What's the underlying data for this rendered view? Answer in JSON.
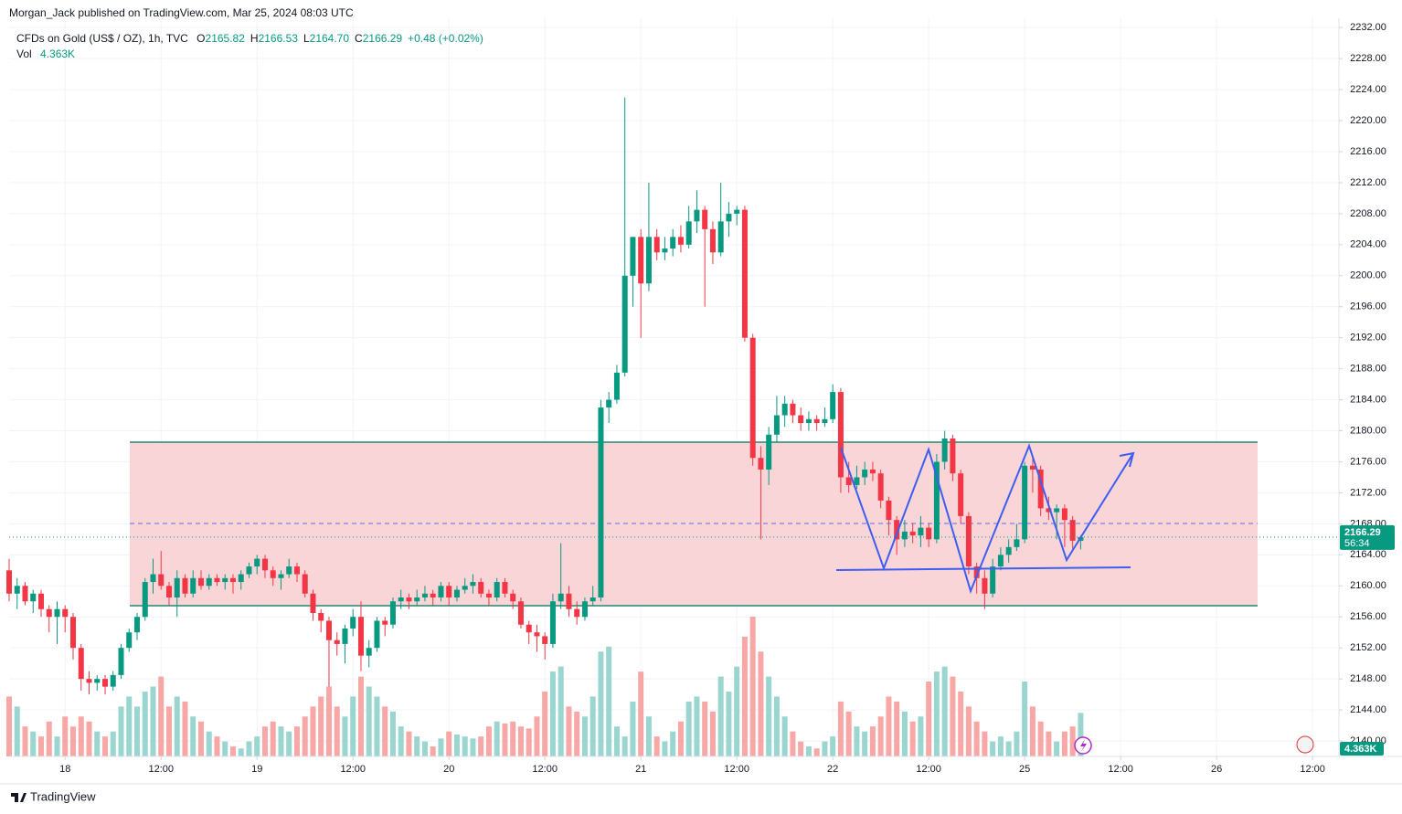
{
  "chart_data": {
    "type": "candlestick",
    "published": "Morgan_Jack published on TradingView.com, Mar 25, 2024 08:03 UTC",
    "title": "CFDs on Gold (US$ / OZ), 1h, TVC",
    "header_ohlc": [
      {
        "key": "O",
        "value": "2165.82"
      },
      {
        "key": "H",
        "value": "2166.53"
      },
      {
        "key": "L",
        "value": "2164.70"
      },
      {
        "key": "C",
        "value": "2166.29"
      }
    ],
    "change": "+0.48 (+0.02%)",
    "volume_name": "Vol",
    "volume_label": "4.363K",
    "last_price": {
      "value": 2166.29,
      "label": "2166.29"
    },
    "countdown": "56:34",
    "brand": "TradingView",
    "up_color": "#089981",
    "down_color": "#f23645",
    "up_volume_color": "#9ad6cf",
    "down_volume_color": "#f7a8a6",
    "grid": true,
    "xlim": [
      -7,
      159.3
    ],
    "ylim": [
      2138,
      2233.2
    ],
    "xticks": [
      {
        "value": 0,
        "label": "18"
      },
      {
        "value": 12,
        "label": "12:00"
      },
      {
        "value": 24,
        "label": "19"
      },
      {
        "value": 36,
        "label": "12:00"
      },
      {
        "value": 48,
        "label": "20"
      },
      {
        "value": 60,
        "label": "12:00"
      },
      {
        "value": 72,
        "label": "21"
      },
      {
        "value": 84,
        "label": "12:00"
      },
      {
        "value": 96,
        "label": "22"
      },
      {
        "value": 108,
        "label": "12:00"
      },
      {
        "value": 120,
        "label": "25"
      },
      {
        "value": 132,
        "label": "12:00"
      },
      {
        "value": 144,
        "label": "26"
      },
      {
        "value": 156,
        "label": "12:00"
      }
    ],
    "yticks": [
      {
        "value": 2140,
        "label": "2140.00"
      },
      {
        "value": 2144,
        "label": "2144.00"
      },
      {
        "value": 2148,
        "label": "2148.00"
      },
      {
        "value": 2152,
        "label": "2152.00"
      },
      {
        "value": 2156,
        "label": "2156.00"
      },
      {
        "value": 2160,
        "label": "2160.00"
      },
      {
        "value": 2164,
        "label": "2164.00"
      },
      {
        "value": 2168,
        "label": "2168.00"
      },
      {
        "value": 2172,
        "label": "2172.00"
      },
      {
        "value": 2176,
        "label": "2176.00"
      },
      {
        "value": 2180,
        "label": "2180.00"
      },
      {
        "value": 2184,
        "label": "2184.00"
      },
      {
        "value": 2188,
        "label": "2188.00"
      },
      {
        "value": 2192,
        "label": "2192.00"
      },
      {
        "value": 2196,
        "label": "2196.00"
      },
      {
        "value": 2200,
        "label": "2200.00"
      },
      {
        "value": 2204,
        "label": "2204.00"
      },
      {
        "value": 2208,
        "label": "2208.00"
      },
      {
        "value": 2212,
        "label": "2212.00"
      },
      {
        "value": 2216,
        "label": "2216.00"
      },
      {
        "value": 2220,
        "label": "2220.00"
      },
      {
        "value": 2224,
        "label": "2224.00"
      },
      {
        "value": 2228,
        "label": "2228.00"
      },
      {
        "value": 2232,
        "label": "2232.00"
      }
    ],
    "x": [
      -7,
      -6,
      -5,
      -4,
      -3,
      -2,
      -1,
      0,
      1,
      2,
      3,
      4,
      5,
      6,
      7,
      8,
      9,
      10,
      11,
      12,
      13,
      14,
      15,
      16,
      17,
      18,
      19,
      20,
      21,
      22,
      23,
      24,
      25,
      26,
      27,
      28,
      29,
      30,
      31,
      32,
      33,
      34,
      35,
      36,
      37,
      38,
      39,
      40,
      41,
      42,
      43,
      44,
      45,
      46,
      47,
      48,
      49,
      50,
      51,
      52,
      53,
      54,
      55,
      56,
      57,
      58,
      59,
      60,
      61,
      62,
      63,
      64,
      65,
      66,
      67,
      68,
      69,
      70,
      71,
      72,
      73,
      74,
      75,
      76,
      77,
      78,
      79,
      80,
      81,
      82,
      83,
      84,
      85,
      86,
      87,
      88,
      89,
      90,
      91,
      92,
      93,
      94,
      95,
      96,
      97,
      98,
      99,
      100,
      101,
      102,
      103,
      104,
      105,
      106,
      107,
      108,
      109,
      110,
      111,
      112,
      113,
      114,
      115,
      116,
      117,
      118,
      119,
      120,
      121,
      122,
      123,
      124,
      125,
      126,
      127
    ],
    "candles": [
      [
        2162,
        2163.5,
        2158,
        2159
      ],
      [
        2159,
        2161,
        2157,
        2160
      ],
      [
        2160,
        2160.5,
        2157.5,
        2158
      ],
      [
        2158,
        2159.5,
        2156.5,
        2159
      ],
      [
        2159,
        2159.5,
        2156,
        2157
      ],
      [
        2157,
        2157.5,
        2154,
        2156
      ],
      [
        2156,
        2158,
        2152.5,
        2157
      ],
      [
        2157,
        2157.5,
        2154,
        2156
      ],
      [
        2156,
        2156.5,
        2150.5,
        2152
      ],
      [
        2152,
        2152.5,
        2146.5,
        2148
      ],
      [
        2148,
        2149,
        2146,
        2147.5
      ],
      [
        2147.5,
        2148.5,
        2146.5,
        2148
      ],
      [
        2148,
        2148.5,
        2146,
        2147
      ],
      [
        2147,
        2149,
        2146.5,
        2148.5
      ],
      [
        2148.5,
        2152.5,
        2148,
        2152
      ],
      [
        2152,
        2154.5,
        2151.5,
        2154
      ],
      [
        2154,
        2156.5,
        2153,
        2156
      ],
      [
        2156,
        2161,
        2155.5,
        2160.5
      ],
      [
        2160.5,
        2163.5,
        2159,
        2161.5
      ],
      [
        2161.5,
        2164.5,
        2159.5,
        2160
      ],
      [
        2160,
        2160.5,
        2157.5,
        2158.5
      ],
      [
        2158.5,
        2162,
        2156,
        2161
      ],
      [
        2161,
        2161.5,
        2158.5,
        2159
      ],
      [
        2159,
        2162,
        2158.5,
        2161
      ],
      [
        2161,
        2162,
        2159.5,
        2160
      ],
      [
        2160,
        2161.5,
        2159.5,
        2161
      ],
      [
        2161,
        2161.5,
        2160,
        2160.5
      ],
      [
        2160.5,
        2161.5,
        2159.5,
        2161
      ],
      [
        2161,
        2161.5,
        2159,
        2160.5
      ],
      [
        2160.5,
        2162,
        2159.5,
        2161.5
      ],
      [
        2161.5,
        2163,
        2161,
        2162.5
      ],
      [
        2162.5,
        2164,
        2161.5,
        2163.5
      ],
      [
        2163.5,
        2164,
        2161,
        2162
      ],
      [
        2162,
        2162.5,
        2160,
        2161
      ],
      [
        2161,
        2162,
        2159.5,
        2161.5
      ],
      [
        2161.5,
        2163.5,
        2161,
        2162.5
      ],
      [
        2162.5,
        2163,
        2160.5,
        2161.5
      ],
      [
        2161.5,
        2162,
        2158.5,
        2159
      ],
      [
        2159,
        2159.5,
        2155.5,
        2156.5
      ],
      [
        2156.5,
        2157,
        2154,
        2155.5
      ],
      [
        2155.5,
        2156,
        2147,
        2153
      ],
      [
        2153,
        2154,
        2151,
        2152.5
      ],
      [
        2152.5,
        2155,
        2150,
        2154.5
      ],
      [
        2154.5,
        2157,
        2153.5,
        2156
      ],
      [
        2156,
        2158,
        2149,
        2151
      ],
      [
        2151,
        2153,
        2149.5,
        2152
      ],
      [
        2152,
        2156,
        2151.5,
        2155.5
      ],
      [
        2155.5,
        2156,
        2153.5,
        2155
      ],
      [
        2155,
        2158.5,
        2154.5,
        2158
      ],
      [
        2158,
        2159.5,
        2157,
        2158.5
      ],
      [
        2158.5,
        2159,
        2157,
        2158
      ],
      [
        2158,
        2159.5,
        2157.5,
        2158.5
      ],
      [
        2158.5,
        2160,
        2158,
        2159
      ],
      [
        2159,
        2159.5,
        2157.5,
        2158.5
      ],
      [
        2158.5,
        2160.5,
        2158,
        2160
      ],
      [
        2160,
        2160.5,
        2157.5,
        2158.5
      ],
      [
        2158.5,
        2160,
        2158,
        2159.5
      ],
      [
        2159.5,
        2161,
        2159,
        2160
      ],
      [
        2160,
        2161.5,
        2159,
        2160.5
      ],
      [
        2160.5,
        2161,
        2158.5,
        2159
      ],
      [
        2159,
        2159.5,
        2157.5,
        2158.5
      ],
      [
        2158.5,
        2161,
        2158,
        2160.5
      ],
      [
        2160.5,
        2161,
        2158.5,
        2159
      ],
      [
        2159,
        2159.5,
        2157,
        2158
      ],
      [
        2158,
        2158.5,
        2154.5,
        2155
      ],
      [
        2155,
        2155.5,
        2152.5,
        2154
      ],
      [
        2154,
        2155,
        2151.5,
        2153.5
      ],
      [
        2153.5,
        2154,
        2150.5,
        2152.5
      ],
      [
        2152.5,
        2159,
        2152,
        2158
      ],
      [
        2158,
        2165.5,
        2157,
        2159
      ],
      [
        2159,
        2160,
        2156,
        2157
      ],
      [
        2157,
        2158,
        2155,
        2156
      ],
      [
        2156,
        2158.5,
        2155.5,
        2158
      ],
      [
        2158,
        2160,
        2157.5,
        2158.5
      ],
      [
        2158.5,
        2184,
        2158,
        2183
      ],
      [
        2183,
        2185,
        2181,
        2184
      ],
      [
        2184,
        2188.5,
        2183.5,
        2187.5
      ],
      [
        2187.5,
        2223,
        2187,
        2200
      ],
      [
        2200,
        2205,
        2196,
        2205
      ],
      [
        2205,
        2206,
        2192,
        2199
      ],
      [
        2199,
        2212,
        2198,
        2205
      ],
      [
        2205,
        2206,
        2202,
        2203
      ],
      [
        2203,
        2205,
        2202,
        2203.5
      ],
      [
        2203.5,
        2206,
        2202.5,
        2205
      ],
      [
        2205,
        2206.5,
        2203,
        2204
      ],
      [
        2204,
        2209,
        2203.5,
        2207
      ],
      [
        2207,
        2211,
        2205.5,
        2208.5
      ],
      [
        2208.5,
        2209,
        2196,
        2206
      ],
      [
        2206,
        2207,
        2201.5,
        2203
      ],
      [
        2203,
        2212,
        2202.5,
        2207
      ],
      [
        2207,
        2209.5,
        2205,
        2208
      ],
      [
        2208,
        2209,
        2206.5,
        2208.5
      ],
      [
        2208.5,
        2209,
        2191.5,
        2192
      ],
      [
        2192,
        2192.5,
        2175.5,
        2176.5
      ],
      [
        2176.5,
        2178,
        2166,
        2175
      ],
      [
        2175,
        2180.5,
        2173,
        2179.5
      ],
      [
        2179.5,
        2184.5,
        2178.5,
        2182
      ],
      [
        2182,
        2184.5,
        2180.5,
        2183.5
      ],
      [
        2183.5,
        2184,
        2181,
        2182
      ],
      [
        2182,
        2183,
        2180,
        2181
      ],
      [
        2181,
        2182.5,
        2180,
        2181.5
      ],
      [
        2181.5,
        2182,
        2180,
        2181
      ],
      [
        2181,
        2183,
        2180.5,
        2181.5
      ],
      [
        2181.5,
        2186,
        2181,
        2185
      ],
      [
        2185,
        2185.5,
        2172,
        2174
      ],
      [
        2174,
        2176,
        2172,
        2173
      ],
      [
        2173,
        2175.5,
        2172.5,
        2174
      ],
      [
        2174,
        2176,
        2173,
        2175
      ],
      [
        2175,
        2176,
        2173.5,
        2174.5
      ],
      [
        2174.5,
        2175,
        2170,
        2171
      ],
      [
        2171,
        2171.5,
        2166.5,
        2168.5
      ],
      [
        2168.5,
        2169,
        2164,
        2166
      ],
      [
        2166,
        2168.5,
        2165,
        2167
      ],
      [
        2167,
        2168,
        2165.5,
        2166.5
      ],
      [
        2166.5,
        2169,
        2165,
        2167.5
      ],
      [
        2167.5,
        2168,
        2165,
        2166
      ],
      [
        2166,
        2177,
        2165.5,
        2176
      ],
      [
        2176,
        2180,
        2175,
        2179
      ],
      [
        2179,
        2179.5,
        2173.5,
        2174.5
      ],
      [
        2174.5,
        2175,
        2168,
        2169
      ],
      [
        2169,
        2169.5,
        2161.5,
        2162.5
      ],
      [
        2162.5,
        2163,
        2159,
        2161
      ],
      [
        2161,
        2162,
        2157,
        2159
      ],
      [
        2159,
        2163.5,
        2158.5,
        2162.5
      ],
      [
        2162.5,
        2165,
        2162,
        2164
      ],
      [
        2164,
        2166,
        2163,
        2165
      ],
      [
        2165,
        2168,
        2164.5,
        2166
      ],
      [
        2166,
        2176,
        2165.5,
        2175.5
      ],
      [
        2175.5,
        2176.5,
        2172,
        2175
      ],
      [
        2175,
        2175.5,
        2169,
        2170
      ],
      [
        2170,
        2171.5,
        2168.5,
        2169.5
      ],
      [
        2169.5,
        2170.5,
        2166,
        2170
      ],
      [
        2170,
        2170.5,
        2165,
        2168.5
      ],
      [
        2168.5,
        2169,
        2164.5,
        2165.82
      ],
      [
        2165.82,
        2166.53,
        2164.7,
        2166.29
      ]
    ],
    "volume": [
      6,
      5,
      3,
      2.5,
      2,
      3.5,
      2,
      4,
      3,
      4,
      3.5,
      2.5,
      2,
      2.5,
      5,
      6,
      5,
      6.5,
      7,
      8,
      5,
      6,
      5.5,
      4,
      3.5,
      2.5,
      2,
      1.5,
      1,
      0.8,
      1.5,
      2,
      3,
      3.5,
      3,
      2.5,
      3,
      4,
      5,
      6,
      7,
      5,
      4,
      6,
      8,
      7,
      6,
      5,
      4.5,
      3,
      2.5,
      2,
      1.5,
      1,
      1.8,
      2.5,
      2.2,
      2,
      1.8,
      2,
      3,
      3.5,
      3.3,
      3.5,
      3,
      2.8,
      4,
      6.5,
      8.5,
      9,
      5,
      4.5,
      4,
      6,
      10.5,
      11,
      3,
      2,
      5.5,
      8.5,
      4,
      2,
      1.5,
      2.5,
      3.5,
      5.5,
      6,
      5.5,
      4.5,
      8,
      6.5,
      9,
      12,
      14,
      10.5,
      8,
      6,
      4,
      2.5,
      1.5,
      1,
      0.8,
      1.5,
      2,
      5.5,
      4.5,
      3,
      2.5,
      3,
      4,
      6,
      5.5,
      4.5,
      3.5,
      4,
      7.5,
      8.5,
      9,
      8,
      6.5,
      5,
      3.5,
      2.5,
      1.5,
      2,
      1.5,
      2.5,
      7.5,
      5,
      3.5,
      2.5,
      1.5,
      2.5,
      3,
      4.363
    ]
  }
}
